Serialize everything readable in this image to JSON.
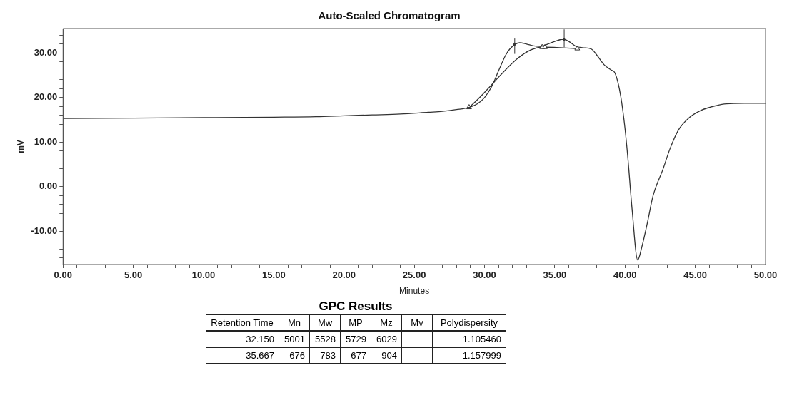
{
  "chart_data": [
    {
      "type": "line",
      "title": "Auto-Scaled Chromatogram",
      "xlabel": "Minutes",
      "ylabel": "mV",
      "xlim": [
        0,
        50
      ],
      "ylim": [
        -17.5,
        35.5
      ],
      "legend": false,
      "grid": false,
      "xticks": [
        {
          "value": 0,
          "label": "0.00"
        },
        {
          "value": 1,
          "label": null
        },
        {
          "value": 2,
          "label": null
        },
        {
          "value": 3,
          "label": null
        },
        {
          "value": 4,
          "label": null
        },
        {
          "value": 5,
          "label": "5.00"
        },
        {
          "value": 6,
          "label": null
        },
        {
          "value": 7,
          "label": null
        },
        {
          "value": 8,
          "label": null
        },
        {
          "value": 9,
          "label": null
        },
        {
          "value": 10,
          "label": "10.00"
        },
        {
          "value": 11,
          "label": null
        },
        {
          "value": 12,
          "label": null
        },
        {
          "value": 13,
          "label": null
        },
        {
          "value": 14,
          "label": null
        },
        {
          "value": 15,
          "label": "15.00"
        },
        {
          "value": 16,
          "label": null
        },
        {
          "value": 17,
          "label": null
        },
        {
          "value": 18,
          "label": null
        },
        {
          "value": 19,
          "label": null
        },
        {
          "value": 20,
          "label": "20.00"
        },
        {
          "value": 21,
          "label": null
        },
        {
          "value": 22,
          "label": null
        },
        {
          "value": 23,
          "label": null
        },
        {
          "value": 24,
          "label": null
        },
        {
          "value": 25,
          "label": "25.00"
        },
        {
          "value": 26,
          "label": null
        },
        {
          "value": 27,
          "label": null
        },
        {
          "value": 28,
          "label": null
        },
        {
          "value": 29,
          "label": null
        },
        {
          "value": 30,
          "label": "30.00"
        },
        {
          "value": 31,
          "label": null
        },
        {
          "value": 32,
          "label": null
        },
        {
          "value": 33,
          "label": null
        },
        {
          "value": 34,
          "label": null
        },
        {
          "value": 35,
          "label": "35.00"
        },
        {
          "value": 36,
          "label": null
        },
        {
          "value": 37,
          "label": null
        },
        {
          "value": 38,
          "label": null
        },
        {
          "value": 39,
          "label": null
        },
        {
          "value": 40,
          "label": "40.00"
        },
        {
          "value": 41,
          "label": null
        },
        {
          "value": 42,
          "label": null
        },
        {
          "value": 43,
          "label": null
        },
        {
          "value": 44,
          "label": null
        },
        {
          "value": 45,
          "label": "45.00"
        },
        {
          "value": 46,
          "label": null
        },
        {
          "value": 47,
          "label": null
        },
        {
          "value": 48,
          "label": null
        },
        {
          "value": 49,
          "label": null
        },
        {
          "value": 50,
          "label": "50.00"
        }
      ],
      "yticks": [
        {
          "value": -16,
          "label": null
        },
        {
          "value": -14,
          "label": null
        },
        {
          "value": -12,
          "label": null
        },
        {
          "value": -10,
          "label": "-10.00"
        },
        {
          "value": -8,
          "label": null
        },
        {
          "value": -6,
          "label": null
        },
        {
          "value": -4,
          "label": null
        },
        {
          "value": -2,
          "label": null
        },
        {
          "value": 0,
          "label": "0.00"
        },
        {
          "value": 2,
          "label": null
        },
        {
          "value": 4,
          "label": null
        },
        {
          "value": 6,
          "label": null
        },
        {
          "value": 8,
          "label": null
        },
        {
          "value": 10,
          "label": "10.00"
        },
        {
          "value": 12,
          "label": null
        },
        {
          "value": 14,
          "label": null
        },
        {
          "value": 16,
          "label": null
        },
        {
          "value": 18,
          "label": null
        },
        {
          "value": 20,
          "label": "20.00"
        },
        {
          "value": 22,
          "label": null
        },
        {
          "value": 24,
          "label": null
        },
        {
          "value": 26,
          "label": null
        },
        {
          "value": 28,
          "label": null
        },
        {
          "value": 30,
          "label": "30.00"
        },
        {
          "value": 32,
          "label": null
        },
        {
          "value": 34,
          "label": null
        }
      ],
      "series": [
        {
          "type": "line",
          "color": "#333333",
          "marker": "none",
          "x": [
            0,
            5,
            10,
            15,
            18,
            20,
            22,
            24,
            26,
            27,
            28,
            28.9,
            29.5,
            30,
            30.5,
            31,
            31.5,
            31.8,
            32.2,
            32.5,
            33,
            33.5,
            34,
            34.5,
            35,
            35.6,
            36,
            36.5,
            37,
            37.6,
            38,
            38.5,
            39,
            39.3,
            39.7,
            40,
            40.2,
            40.5,
            40.9,
            41.2,
            41.6,
            42,
            42.7,
            43.2,
            43.8,
            44.5,
            45.4,
            46.5,
            47.2,
            48.5,
            50
          ],
          "values": [
            15.3,
            15.4,
            15.5,
            15.6,
            15.7,
            15.9,
            16.1,
            16.3,
            16.7,
            16.9,
            17.3,
            17.8,
            18.6,
            20.0,
            22.4,
            26.0,
            29.5,
            30.9,
            32.0,
            32.3,
            32.0,
            31.6,
            31.5,
            32.0,
            32.6,
            33.1,
            32.6,
            31.5,
            31.2,
            30.9,
            29.5,
            27.4,
            26.2,
            25.4,
            20.2,
            13,
            6.5,
            -5,
            -16.5,
            -13.5,
            -8,
            -2,
            3.9,
            8.5,
            12.7,
            15.3,
            17.1,
            18.2,
            18.6,
            18.7,
            18.7
          ]
        },
        {
          "type": "line",
          "color": "#333333",
          "marker": "triangle",
          "x": [
            28.9,
            34.1,
            34.3,
            36.6
          ],
          "values": [
            17.8,
            31.3,
            31.3,
            31.0
          ]
        },
        {
          "type": "scatter",
          "color": "#333333",
          "marker": "circle",
          "x": [
            32.15,
            35.67
          ],
          "values": [
            32.0,
            33.1
          ],
          "errors": [
            [
              29.8,
              33.4
            ],
            [
              31.3,
              35.3
            ]
          ]
        }
      ]
    },
    {
      "type": "other",
      "title": "GPC Results",
      "categories": [
        "Retention Time",
        "Mn",
        "Mw",
        "MP",
        "Mz",
        "Mv",
        "Polydispersity"
      ],
      "cell_labels": [
        [
          "32.150",
          "5001",
          "5528",
          "5729",
          "6029",
          null,
          "1.105460"
        ],
        [
          "35.667",
          "676",
          "783",
          "677",
          "904",
          null,
          "1.157999"
        ]
      ]
    }
  ]
}
